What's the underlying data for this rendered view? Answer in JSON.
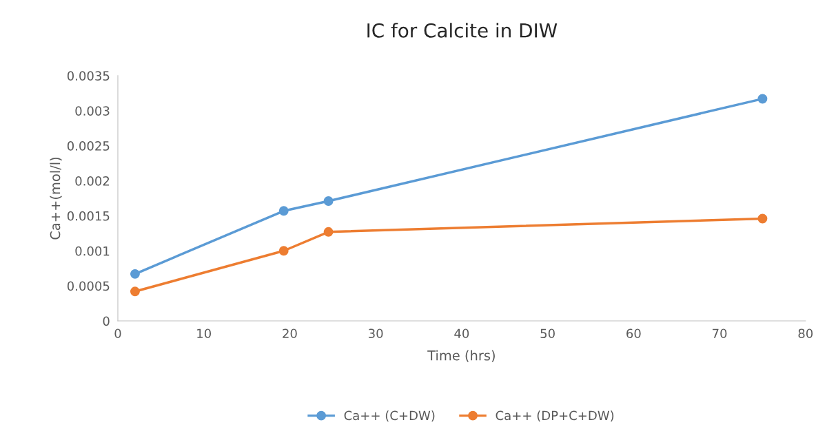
{
  "chart_data": {
    "type": "line",
    "title": "IC for Calcite in DIW",
    "xlabel": "Time (hrs)",
    "ylabel": "Ca++(mol/l)",
    "x": [
      2,
      19.3,
      24.5,
      75
    ],
    "series": [
      {
        "name": "Ca++ (C+DW)",
        "color": "#5b9bd5",
        "values": [
          0.00067,
          0.00157,
          0.00171,
          0.00317
        ]
      },
      {
        "name": "Ca++ (DP+C+DW)",
        "color": "#ed7d31",
        "values": [
          0.00042,
          0.001,
          0.00127,
          0.00146
        ]
      }
    ],
    "xlim": [
      0,
      80
    ],
    "xticks": [
      0,
      10,
      20,
      30,
      40,
      50,
      60,
      70,
      80
    ],
    "ylim": [
      0,
      0.0035
    ],
    "yticks": [
      {
        "value": 0,
        "label": "0"
      },
      {
        "value": 0.0005,
        "label": "0.0005"
      },
      {
        "value": 0.001,
        "label": "0.001"
      },
      {
        "value": 0.0015,
        "label": "0.0015"
      },
      {
        "value": 0.002,
        "label": "0.002"
      },
      {
        "value": 0.0025,
        "label": "0.0025"
      },
      {
        "value": 0.003,
        "label": "0.003"
      },
      {
        "value": 0.0035,
        "label": "0.0035"
      }
    ],
    "grid": false,
    "legend": "bottom",
    "marker": "circle",
    "line_style": "solid"
  }
}
